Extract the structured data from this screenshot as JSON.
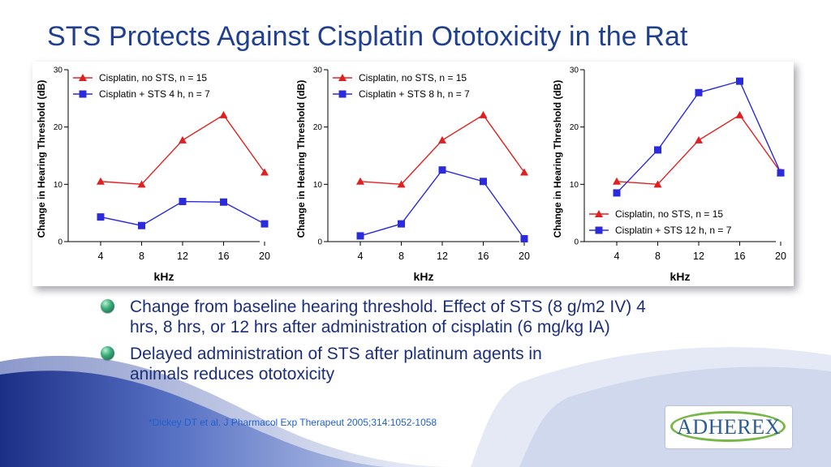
{
  "slide": {
    "title": "STS Protects Against Cisplatin Ototoxicity in the Rat",
    "bullets": [
      "Change from baseline hearing threshold. Effect of STS (8 g/m2 IV) 4 hrs, 8 hrs, or 12 hrs after administration of cisplatin (6 mg/kg IA)",
      "Delayed administration of STS after platinum agents in animals reduces ototoxicity"
    ],
    "citation": "*Dickey DT et al. J Pharmacol Exp Therapeut 2005;314:1052-1058",
    "logo_text": "ADHEREX"
  },
  "colors": {
    "title": "#1f3f8f",
    "bullet_text": "#1c2f7a",
    "cisplatin_series": "#e02020",
    "sts_series": "#2b2bdc",
    "citation": "#1f5fd0",
    "logo_ring": "#77b748",
    "logo_text": "#2c5c96"
  },
  "icons": {
    "bullet": "green-sphere-bullet-icon",
    "series_1_marker": "triangle",
    "series_2_marker": "square"
  },
  "chart_data": [
    {
      "type": "line",
      "x": [
        4,
        8,
        12,
        16,
        20
      ],
      "xlabel": "kHz",
      "ylabel": "Change in Hearing Threshold (dB)",
      "ylim": [
        0,
        30
      ],
      "yticks": [
        0,
        10,
        20,
        30
      ],
      "legend_position": "top-left",
      "series": [
        {
          "name": "Cisplatin, no STS, n = 15",
          "marker": "triangle",
          "values": [
            10.5,
            10,
            17.7,
            22.1,
            12.1
          ]
        },
        {
          "name": "Cisplatin + STS 4 h, n = 7",
          "marker": "square",
          "values": [
            4.3,
            2.8,
            7,
            6.9,
            3.1
          ]
        }
      ]
    },
    {
      "type": "line",
      "x": [
        4,
        8,
        12,
        16,
        20
      ],
      "xlabel": "kHz",
      "ylabel": "Change in Hearing Threshold (dB)",
      "ylim": [
        0,
        30
      ],
      "yticks": [
        0,
        10,
        20,
        30
      ],
      "legend_position": "top-left",
      "series": [
        {
          "name": "Cisplatin, no STS, n = 15",
          "marker": "triangle",
          "values": [
            10.5,
            10,
            17.7,
            22.1,
            12.1
          ]
        },
        {
          "name": "Cisplatin + STS 8 h, n = 7",
          "marker": "square",
          "values": [
            1,
            3.1,
            12.5,
            10.5,
            0.5
          ]
        }
      ]
    },
    {
      "type": "line",
      "x": [
        4,
        8,
        12,
        16,
        20
      ],
      "xlabel": "kHz",
      "ylabel": "Change in Hearing Threshold (dB)",
      "ylim": [
        0,
        30
      ],
      "yticks": [
        0,
        10,
        20,
        30
      ],
      "legend_position": "bottom-left",
      "series": [
        {
          "name": "Cisplatin, no STS, n = 15",
          "marker": "triangle",
          "values": [
            10.5,
            10,
            17.7,
            22.1,
            12.1
          ]
        },
        {
          "name": "Cisplatin + STS 12 h, n = 7",
          "marker": "square",
          "values": [
            8.5,
            16,
            26,
            28,
            12
          ]
        }
      ]
    }
  ]
}
